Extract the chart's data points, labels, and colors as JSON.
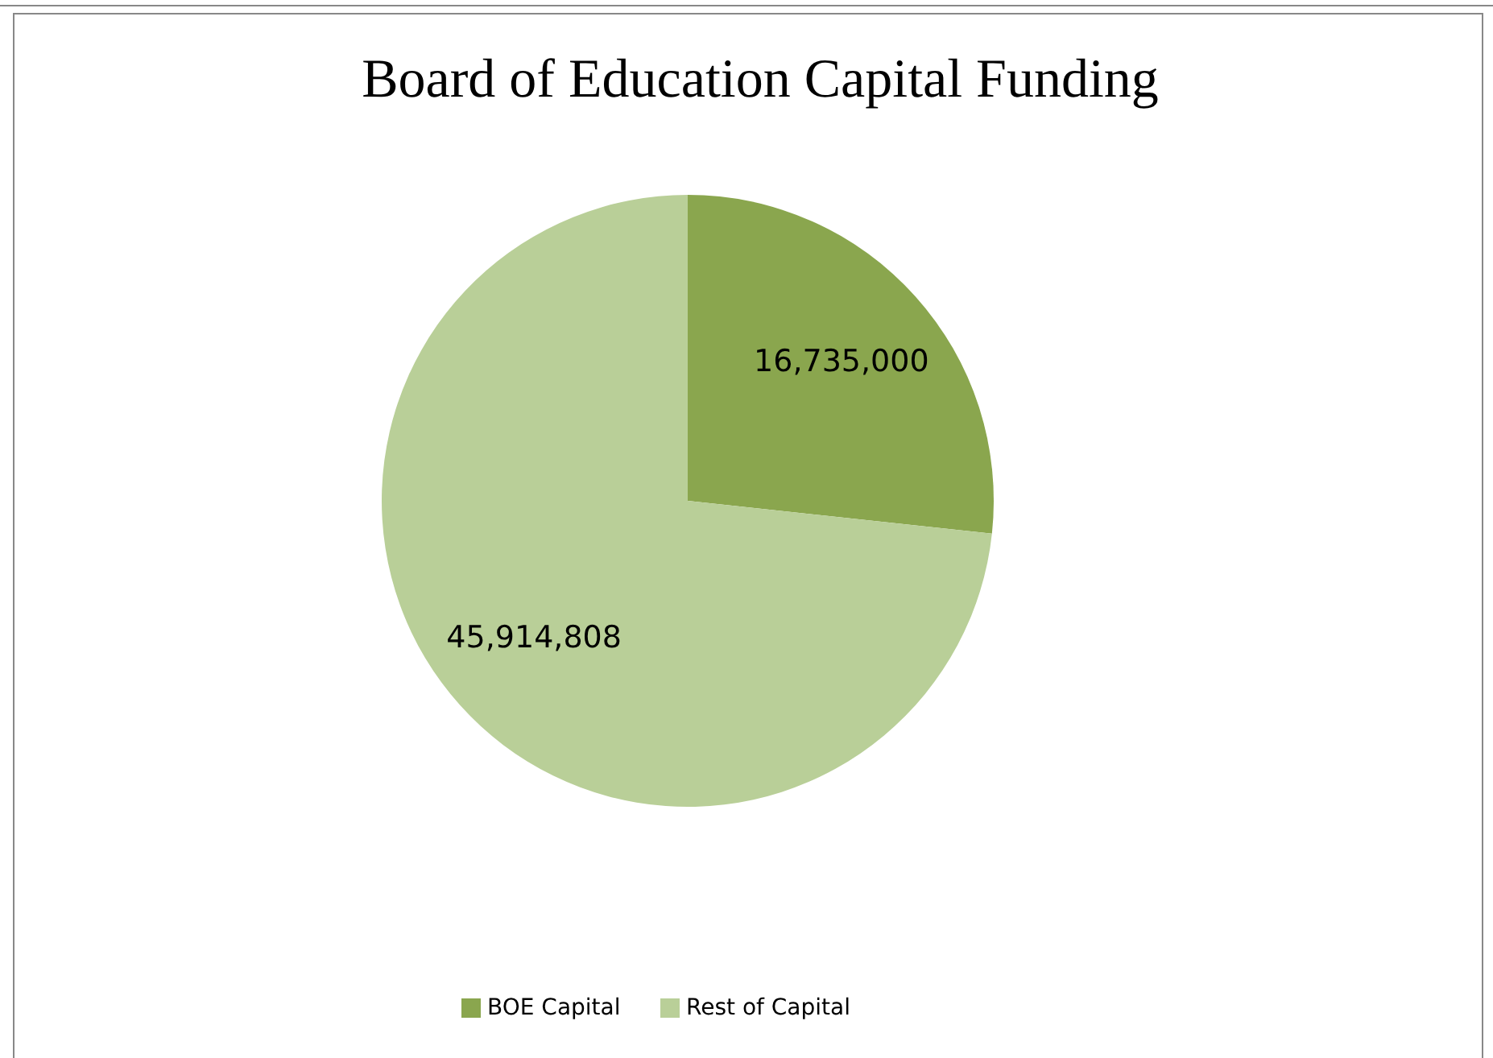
{
  "chart_data": {
    "type": "pie",
    "title": "Board of Education Capital Funding",
    "categories": [
      "BOE Capital",
      "Rest of Capital"
    ],
    "values": [
      16735000,
      45914808
    ],
    "value_labels": [
      "16,735,000",
      "45,914,808"
    ],
    "colors": [
      "#8aa64e",
      "#b9cf98"
    ],
    "legend": "bottom"
  }
}
